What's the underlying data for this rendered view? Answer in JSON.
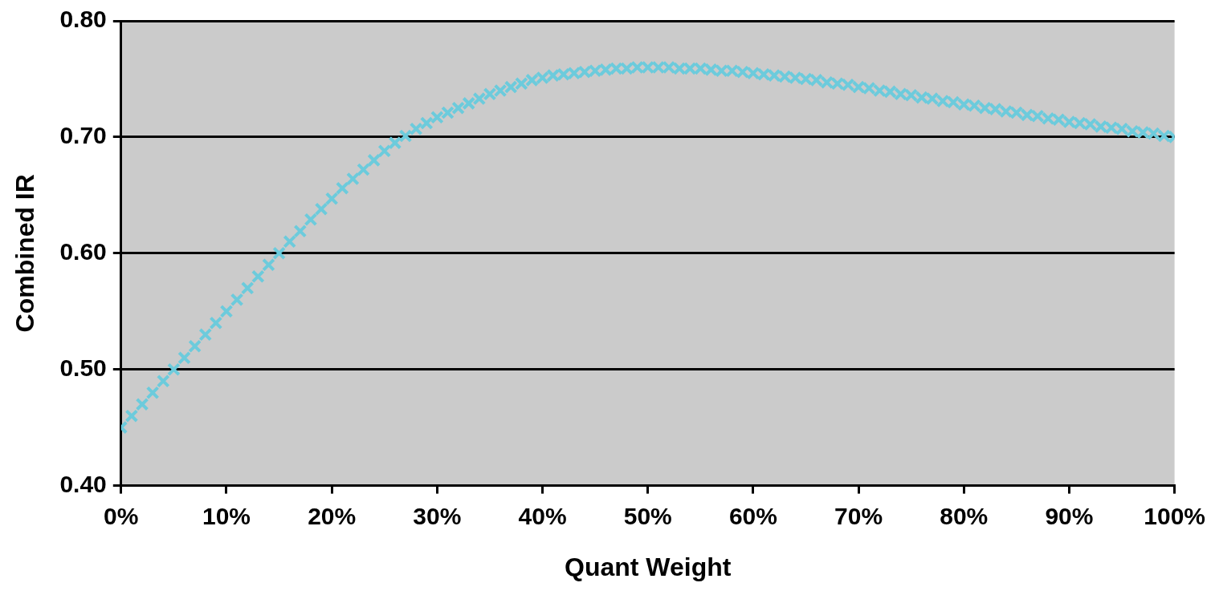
{
  "chart_data": {
    "type": "scatter",
    "xlabel": "Quant Weight",
    "ylabel": "Combined IR",
    "x": [
      0,
      1,
      2,
      3,
      4,
      5,
      6,
      7,
      8,
      9,
      10,
      11,
      12,
      13,
      14,
      15,
      16,
      17,
      18,
      19,
      20,
      21,
      22,
      23,
      24,
      25,
      26,
      27,
      28,
      29,
      30,
      31,
      32,
      33,
      34,
      35,
      36,
      37,
      38,
      39,
      40,
      41,
      42,
      43,
      44,
      45,
      46,
      47,
      48,
      49,
      50,
      51,
      52,
      53,
      54,
      55,
      56,
      57,
      58,
      59,
      60,
      61,
      62,
      63,
      64,
      65,
      66,
      67,
      68,
      69,
      70,
      71,
      72,
      73,
      74,
      75,
      76,
      77,
      78,
      79,
      80,
      81,
      82,
      83,
      84,
      85,
      86,
      87,
      88,
      89,
      90,
      91,
      92,
      93,
      94,
      95,
      96,
      97,
      98,
      99,
      100
    ],
    "series": [
      {
        "color": "#6ccbdc",
        "values": [
          0.45,
          0.46,
          0.47,
          0.48,
          0.49,
          0.5,
          0.51,
          0.52,
          0.53,
          0.54,
          0.55,
          0.56,
          0.57,
          0.58,
          0.59,
          0.6,
          0.61,
          0.619,
          0.629,
          0.638,
          0.647,
          0.656,
          0.664,
          0.672,
          0.68,
          0.688,
          0.695,
          0.701,
          0.707,
          0.712,
          0.717,
          0.721,
          0.725,
          0.729,
          0.733,
          0.737,
          0.74,
          0.743,
          0.746,
          0.749,
          0.751,
          0.753,
          0.754,
          0.755,
          0.756,
          0.757,
          0.758,
          0.759,
          0.759,
          0.76,
          0.76,
          0.76,
          0.76,
          0.759,
          0.759,
          0.759,
          0.758,
          0.757,
          0.757,
          0.756,
          0.755,
          0.754,
          0.753,
          0.752,
          0.751,
          0.75,
          0.749,
          0.747,
          0.746,
          0.745,
          0.743,
          0.742,
          0.74,
          0.739,
          0.737,
          0.736,
          0.734,
          0.733,
          0.731,
          0.73,
          0.728,
          0.727,
          0.725,
          0.724,
          0.722,
          0.721,
          0.719,
          0.718,
          0.716,
          0.715,
          0.713,
          0.712,
          0.711,
          0.709,
          0.708,
          0.707,
          0.705,
          0.704,
          0.703,
          0.701,
          0.7
        ]
      }
    ],
    "xlim": [
      0,
      100
    ],
    "xticks": [
      {
        "value": 0,
        "label": "0%"
      },
      {
        "value": 10,
        "label": "10%"
      },
      {
        "value": 20,
        "label": "20%"
      },
      {
        "value": 30,
        "label": "30%"
      },
      {
        "value": 40,
        "label": "40%"
      },
      {
        "value": 50,
        "label": "50%"
      },
      {
        "value": 60,
        "label": "60%"
      },
      {
        "value": 70,
        "label": "70%"
      },
      {
        "value": 80,
        "label": "80%"
      },
      {
        "value": 90,
        "label": "90%"
      },
      {
        "value": 100,
        "label": "100%"
      }
    ],
    "ylim": [
      0.4,
      0.8
    ],
    "yticks": [
      {
        "value": 0.4,
        "label": "0.40"
      },
      {
        "value": 0.5,
        "label": "0.50"
      },
      {
        "value": 0.6,
        "label": "0.60"
      },
      {
        "value": 0.7,
        "label": "0.70"
      },
      {
        "value": 0.8,
        "label": "0.80"
      }
    ],
    "grid": "y",
    "marker": "cross",
    "legend": false
  }
}
